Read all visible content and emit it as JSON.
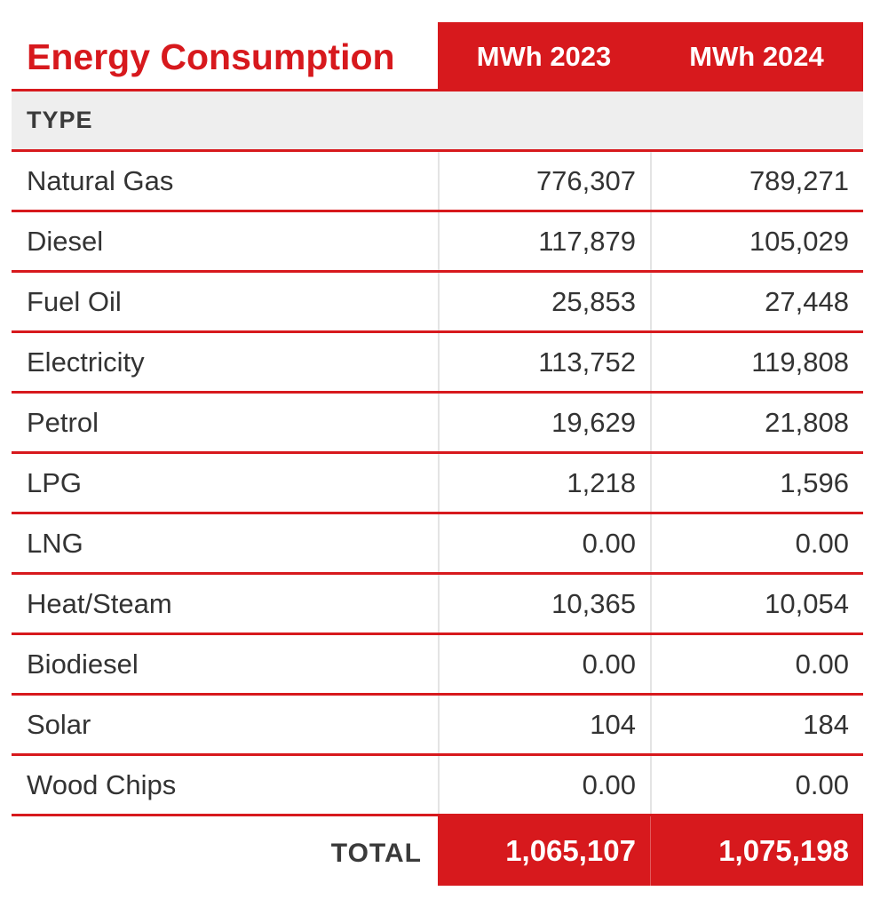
{
  "table": {
    "title": "Energy Consumption",
    "columns": [
      "MWh 2023",
      "MWh 2024"
    ],
    "section_label": "TYPE",
    "rows": [
      {
        "type": "Natural Gas",
        "v2023": "776,307",
        "v2024": "789,271"
      },
      {
        "type": "Diesel",
        "v2023": "117,879",
        "v2024": "105,029"
      },
      {
        "type": "Fuel Oil",
        "v2023": "25,853",
        "v2024": "27,448"
      },
      {
        "type": "Electricity",
        "v2023": "113,752",
        "v2024": "119,808"
      },
      {
        "type": "Petrol",
        "v2023": "19,629",
        "v2024": "21,808"
      },
      {
        "type": "LPG",
        "v2023": "1,218",
        "v2024": "1,596"
      },
      {
        "type": "LNG",
        "v2023": "0.00",
        "v2024": "0.00"
      },
      {
        "type": "Heat/Steam",
        "v2023": "10,365",
        "v2024": "10,054"
      },
      {
        "type": "Biodiesel",
        "v2023": "0.00",
        "v2024": "0.00"
      },
      {
        "type": "Solar",
        "v2023": "104",
        "v2024": "184"
      },
      {
        "type": "Wood Chips",
        "v2023": "0.00",
        "v2024": "0.00"
      }
    ],
    "total": {
      "label": "TOTAL",
      "v2023": "1,065,107",
      "v2024": "1,075,198"
    }
  },
  "colors": {
    "accent": "#d7191d",
    "type_bar": "#eeeeee",
    "text": "#333333"
  }
}
